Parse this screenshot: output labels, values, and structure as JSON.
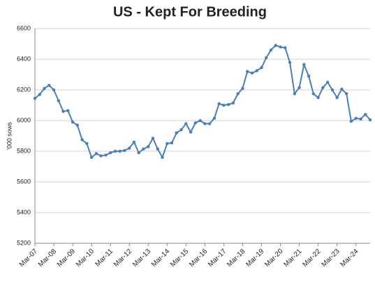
{
  "chart_data": {
    "type": "line",
    "title": "US - Kept For Breeding",
    "y_label": "'000 sows",
    "categories": [
      "Mar-07",
      null,
      null,
      null,
      "Mar-08",
      null,
      null,
      null,
      "Mar-09",
      null,
      null,
      null,
      "Mar-10",
      null,
      null,
      null,
      "Mar-11",
      null,
      null,
      null,
      "Mar-12",
      null,
      null,
      null,
      "Mar-13",
      null,
      null,
      null,
      "Mar-14",
      null,
      null,
      null,
      "Mar-15",
      null,
      null,
      null,
      "Mar-16",
      null,
      null,
      null,
      "Mar-17",
      null,
      null,
      null,
      "Mar-18",
      null,
      null,
      null,
      "Mar-19",
      null,
      null,
      null,
      "Mar-20",
      null,
      null,
      null,
      "Mar-21",
      null,
      null,
      null,
      "Mar-22",
      null,
      null,
      null,
      "Mar-23",
      null,
      null,
      null,
      "Mar-24",
      null,
      null,
      null
    ],
    "values": [
      6145,
      6170,
      6210,
      6230,
      6200,
      6130,
      6060,
      6065,
      5990,
      5970,
      5875,
      5850,
      5760,
      5785,
      5770,
      5775,
      5790,
      5800,
      5800,
      5805,
      5820,
      5860,
      5790,
      5815,
      5830,
      5885,
      5815,
      5760,
      5850,
      5855,
      5920,
      5940,
      5980,
      5925,
      5985,
      6000,
      5980,
      5980,
      6015,
      6110,
      6100,
      6105,
      6115,
      6175,
      6210,
      6320,
      6310,
      6325,
      6345,
      6410,
      6460,
      6490,
      6480,
      6475,
      6380,
      6175,
      6215,
      6365,
      6290,
      6175,
      6150,
      6215,
      6250,
      6200,
      6150,
      6205,
      6175,
      5995,
      6015,
      6010,
      6040,
      6005
    ],
    "color": "#4a7ebb",
    "ylim": [
      5200,
      6600
    ],
    "yticks": [
      5200,
      5400,
      5600,
      5800,
      6000,
      6200,
      6400,
      6600
    ],
    "grid": true
  }
}
